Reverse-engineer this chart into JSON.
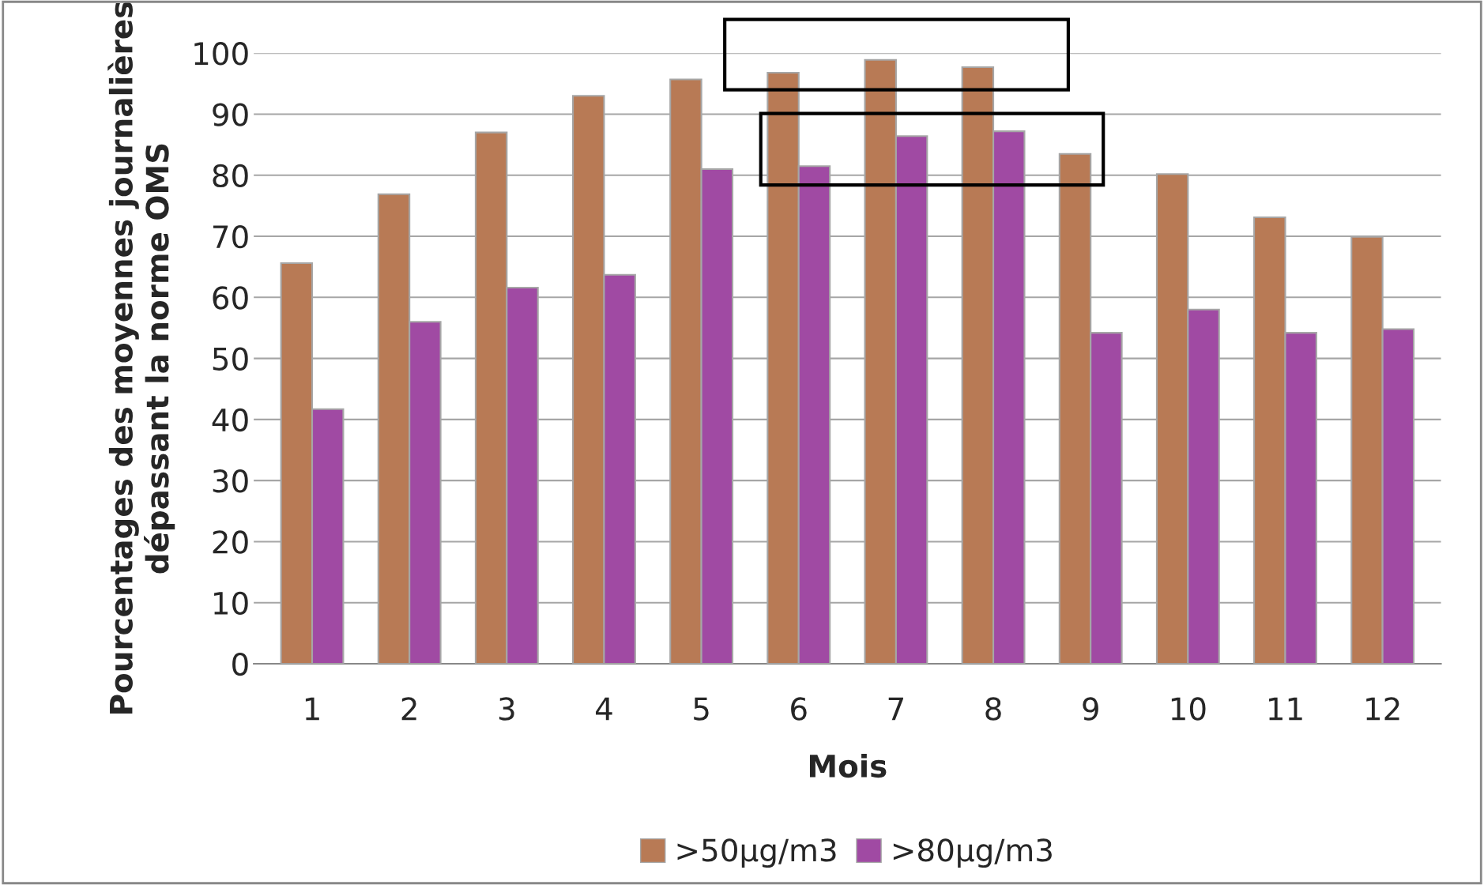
{
  "chart_data": {
    "type": "bar",
    "xlabel": "Mois",
    "ylabel": "Pourcentages des moyennes journalières dépassant la norme OMS",
    "categories": [
      "1",
      "2",
      "3",
      "4",
      "5",
      "6",
      "7",
      "8",
      "9",
      "10",
      "11",
      "12"
    ],
    "series": [
      {
        "name": ">50µg/m3",
        "color": "#b87a55",
        "values": [
          65.6,
          76.9,
          87,
          93,
          95.7,
          96.8,
          98.9,
          97.7,
          83.5,
          80.2,
          73.1,
          69.9
        ]
      },
      {
        "name": ">80µg/m3",
        "color": "#a04aa3",
        "values": [
          41.7,
          56,
          61.6,
          63.7,
          81,
          81.5,
          86.4,
          87.2,
          54.2,
          58,
          54.2,
          54.8
        ]
      }
    ],
    "ylim": [
      0,
      100
    ],
    "yticks": [
      0,
      10,
      20,
      30,
      40,
      50,
      60,
      70,
      80,
      90,
      100
    ],
    "grid": "y",
    "legend": "bottom"
  }
}
